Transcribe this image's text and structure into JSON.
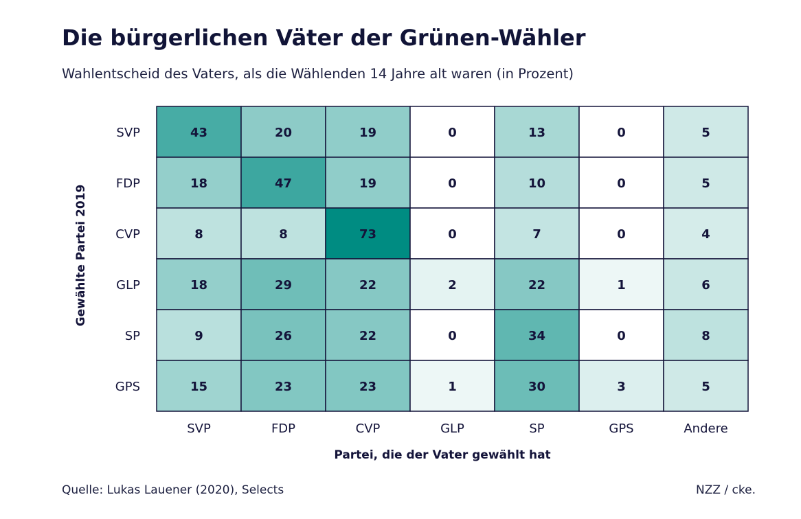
{
  "chart_data": {
    "type": "heatmap",
    "title": "Die bürgerlichen Väter der Grünen-Wähler",
    "subtitle": "Wahlentscheid des Vaters, als die Wählenden 14 Jahre alt waren (in Prozent)",
    "xlabel": "Partei, die der Vater gewählt hat",
    "ylabel": "Gewählte Partei 2019",
    "x_categories": [
      "SVP",
      "FDP",
      "CVP",
      "GLP",
      "SP",
      "GPS",
      "Andere"
    ],
    "y_categories": [
      "SVP",
      "FDP",
      "CVP",
      "GLP",
      "SP",
      "GPS"
    ],
    "values": [
      [
        43,
        20,
        19,
        0,
        13,
        0,
        5
      ],
      [
        18,
        47,
        19,
        0,
        10,
        0,
        5
      ],
      [
        8,
        8,
        73,
        0,
        7,
        0,
        4
      ],
      [
        18,
        29,
        22,
        2,
        22,
        1,
        6
      ],
      [
        9,
        26,
        22,
        0,
        34,
        0,
        8
      ],
      [
        15,
        23,
        23,
        1,
        30,
        3,
        5
      ]
    ],
    "value_range": [
      0,
      73
    ],
    "color_low": "#ffffff",
    "color_high": "#008c82"
  },
  "source": "Quelle: Lukas Lauener (2020), Selects",
  "credit": "NZZ / cke."
}
